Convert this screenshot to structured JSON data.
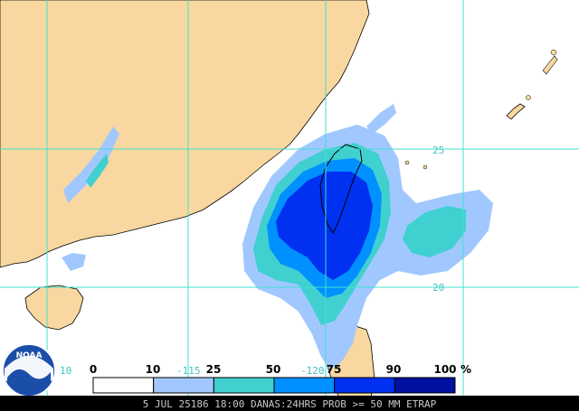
{
  "map": {
    "grid_color": "#40e0d0",
    "land_color": "#f8d8a0",
    "ocean_color": "#ffffff",
    "latitude_labels": [
      "25",
      "20"
    ],
    "longitude_labels": [
      "-115",
      "-120",
      "10"
    ]
  },
  "legend": {
    "ticks": [
      "0",
      "10",
      "25",
      "50",
      "75",
      "90",
      "100"
    ],
    "unit": "%",
    "colors": [
      "#ffffff",
      "#a0c8ff",
      "#40d0d0",
      "#0090ff",
      "#0030f0",
      "#0010a0"
    ]
  },
  "footer": {
    "caption": "5 JUL 25186 18:00 DANAS:24HRS PROB >= 50 MM ETRAP"
  },
  "logo": {
    "text": "NOAA"
  }
}
